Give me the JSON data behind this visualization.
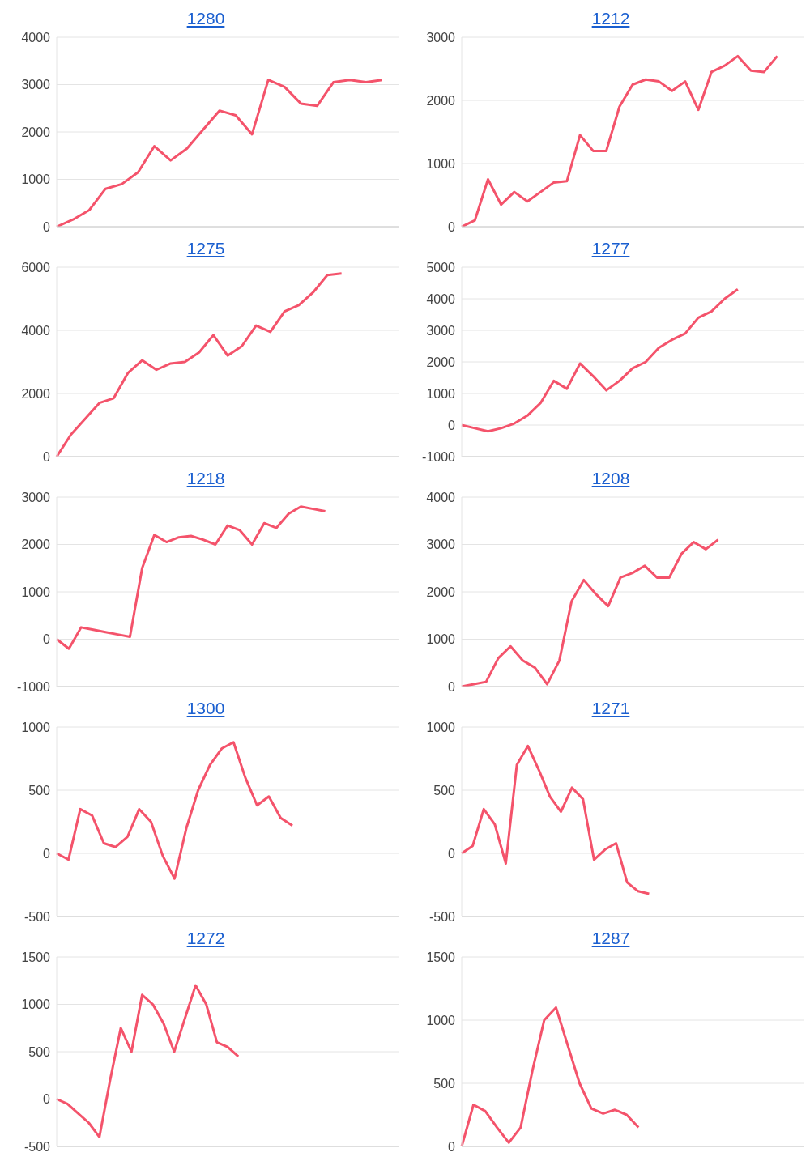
{
  "chart_data": [
    {
      "type": "line",
      "title": "1280",
      "categories": [
        null,
        null,
        null,
        null,
        null,
        null,
        null,
        null,
        null,
        null,
        null,
        null,
        null,
        null,
        null,
        null,
        null,
        null,
        null,
        null,
        null,
        null
      ],
      "values": [
        0,
        150,
        350,
        800,
        900,
        1150,
        1700,
        1400,
        1650,
        2050,
        2450,
        2350,
        1950,
        3100,
        2950,
        2600,
        2550,
        3050,
        3100,
        3050,
        3100,
        null
      ],
      "color": "#f4536b",
      "ylim": [
        0,
        4000
      ],
      "yticks": [
        0,
        1000,
        2000,
        3000,
        4000
      ],
      "grid": "y"
    },
    {
      "type": "line",
      "title": "1212",
      "categories": [
        null,
        null,
        null,
        null,
        null,
        null,
        null,
        null,
        null,
        null,
        null,
        null,
        null,
        null,
        null,
        null,
        null,
        null,
        null,
        null,
        null,
        null,
        null,
        null,
        null,
        null,
        null
      ],
      "values": [
        0,
        100,
        750,
        350,
        550,
        400,
        550,
        700,
        720,
        1450,
        1200,
        1200,
        1900,
        2250,
        2330,
        2300,
        2150,
        2300,
        1850,
        2450,
        2550,
        2700,
        2470,
        2450,
        2700,
        null,
        null
      ],
      "color": "#f4536b",
      "ylim": [
        0,
        3000
      ],
      "yticks": [
        0,
        1000,
        2000,
        3000
      ],
      "grid": "y"
    },
    {
      "type": "line",
      "title": "1275",
      "categories": [
        null,
        null,
        null,
        null,
        null,
        null,
        null,
        null,
        null,
        null,
        null,
        null,
        null,
        null,
        null,
        null,
        null,
        null,
        null,
        null,
        null,
        null,
        null,
        null,
        null
      ],
      "values": [
        0,
        700,
        1200,
        1700,
        1850,
        2650,
        3050,
        2750,
        2950,
        3000,
        3300,
        3850,
        3200,
        3500,
        4150,
        3950,
        4600,
        4800,
        5200,
        5750,
        5800,
        null,
        null,
        null,
        null
      ],
      "color": "#f4536b",
      "ylim": [
        0,
        6000
      ],
      "yticks": [
        0,
        2000,
        4000,
        6000
      ],
      "grid": "y"
    },
    {
      "type": "line",
      "title": "1277",
      "categories": [
        null,
        null,
        null,
        null,
        null,
        null,
        null,
        null,
        null,
        null,
        null,
        null,
        null,
        null,
        null,
        null,
        null,
        null,
        null,
        null,
        null,
        null,
        null,
        null,
        null,
        null,
        null
      ],
      "values": [
        0,
        -100,
        -200,
        -100,
        50,
        300,
        700,
        1400,
        1150,
        1950,
        1550,
        1100,
        1400,
        1800,
        2000,
        2450,
        2700,
        2900,
        3400,
        3600,
        4000,
        4300,
        null,
        null,
        null,
        null,
        null
      ],
      "color": "#f4536b",
      "ylim": [
        -1000,
        5000
      ],
      "yticks": [
        -1000,
        0,
        1000,
        2000,
        3000,
        4000,
        5000
      ],
      "grid": "y"
    },
    {
      "type": "line",
      "title": "1218",
      "categories": [
        null,
        null,
        null,
        null,
        null,
        null,
        null,
        null,
        null,
        null,
        null,
        null,
        null,
        null,
        null,
        null,
        null,
        null,
        null,
        null,
        null,
        null,
        null,
        null,
        null,
        null,
        null,
        null,
        null
      ],
      "values": [
        0,
        -200,
        250,
        200,
        150,
        100,
        50,
        1500,
        2200,
        2050,
        2150,
        2180,
        2100,
        2000,
        2400,
        2300,
        2000,
        2450,
        2350,
        2650,
        2800,
        2750,
        2700,
        null,
        null,
        null,
        null,
        null,
        null
      ],
      "color": "#f4536b",
      "ylim": [
        -1000,
        3000
      ],
      "yticks": [
        -1000,
        0,
        1000,
        2000,
        3000
      ],
      "grid": "y"
    },
    {
      "type": "line",
      "title": "1208",
      "categories": [
        null,
        null,
        null,
        null,
        null,
        null,
        null,
        null,
        null,
        null,
        null,
        null,
        null,
        null,
        null,
        null,
        null,
        null,
        null,
        null,
        null,
        null,
        null,
        null,
        null,
        null,
        null,
        null,
        null
      ],
      "values": [
        0,
        50,
        100,
        600,
        850,
        550,
        400,
        50,
        550,
        1800,
        2250,
        1950,
        1700,
        2300,
        2400,
        2550,
        2300,
        2300,
        2800,
        3050,
        2900,
        3100,
        null,
        null,
        null,
        null,
        null,
        null,
        null
      ],
      "color": "#f4536b",
      "ylim": [
        0,
        4000
      ],
      "yticks": [
        0,
        1000,
        2000,
        3000,
        4000
      ],
      "grid": "y"
    },
    {
      "type": "line",
      "title": "1300",
      "categories": [
        null,
        null,
        null,
        null,
        null,
        null,
        null,
        null,
        null,
        null,
        null,
        null,
        null,
        null,
        null,
        null,
        null,
        null,
        null,
        null,
        null,
        null,
        null,
        null,
        null,
        null,
        null,
        null,
        null,
        null
      ],
      "values": [
        0,
        -50,
        350,
        300,
        80,
        50,
        130,
        350,
        250,
        -20,
        -200,
        200,
        500,
        700,
        830,
        880,
        600,
        380,
        450,
        280,
        220,
        null,
        null,
        null,
        null,
        null,
        null,
        null,
        null,
        null
      ],
      "color": "#f4536b",
      "ylim": [
        -500,
        1000
      ],
      "yticks": [
        -500,
        0,
        500,
        1000
      ],
      "grid": "y"
    },
    {
      "type": "line",
      "title": "1271",
      "categories": [
        null,
        null,
        null,
        null,
        null,
        null,
        null,
        null,
        null,
        null,
        null,
        null,
        null,
        null,
        null,
        null,
        null,
        null,
        null,
        null,
        null,
        null,
        null,
        null,
        null,
        null,
        null,
        null,
        null,
        null,
        null,
        null
      ],
      "values": [
        0,
        60,
        350,
        230,
        -80,
        700,
        850,
        660,
        450,
        330,
        520,
        430,
        -50,
        30,
        80,
        -230,
        -300,
        -320,
        null,
        null,
        null,
        null,
        null,
        null,
        null,
        null,
        null,
        null,
        null,
        null,
        null,
        null
      ],
      "color": "#f4536b",
      "ylim": [
        -500,
        1000
      ],
      "yticks": [
        -500,
        0,
        500,
        1000
      ],
      "grid": "y"
    },
    {
      "type": "line",
      "title": "1272",
      "categories": [
        null,
        null,
        null,
        null,
        null,
        null,
        null,
        null,
        null,
        null,
        null,
        null,
        null,
        null,
        null,
        null,
        null,
        null,
        null,
        null,
        null,
        null,
        null,
        null,
        null,
        null,
        null,
        null,
        null,
        null,
        null,
        null,
        null
      ],
      "values": [
        0,
        -50,
        -150,
        -250,
        -400,
        200,
        750,
        500,
        1100,
        1000,
        800,
        500,
        850,
        1200,
        1000,
        600,
        550,
        450,
        null,
        null,
        null,
        null,
        null,
        null,
        null,
        null,
        null,
        null,
        null,
        null,
        null,
        null,
        null
      ],
      "color": "#f4536b",
      "ylim": [
        -500,
        1500
      ],
      "yticks": [
        -500,
        0,
        500,
        1000,
        1500
      ],
      "grid": "y"
    },
    {
      "type": "line",
      "title": "1287",
      "categories": [
        null,
        null,
        null,
        null,
        null,
        null,
        null,
        null,
        null,
        null,
        null,
        null,
        null,
        null,
        null,
        null,
        null,
        null,
        null,
        null,
        null,
        null,
        null,
        null,
        null,
        null,
        null,
        null,
        null,
        null
      ],
      "values": [
        0,
        330,
        280,
        150,
        30,
        150,
        600,
        1000,
        1100,
        800,
        500,
        300,
        260,
        290,
        250,
        150,
        null,
        null,
        null,
        null,
        null,
        null,
        null,
        null,
        null,
        null,
        null,
        null,
        null,
        null
      ],
      "color": "#f4536b",
      "ylim": [
        0,
        1500
      ],
      "yticks": [
        0,
        500,
        1000,
        1500
      ],
      "grid": "y"
    }
  ]
}
